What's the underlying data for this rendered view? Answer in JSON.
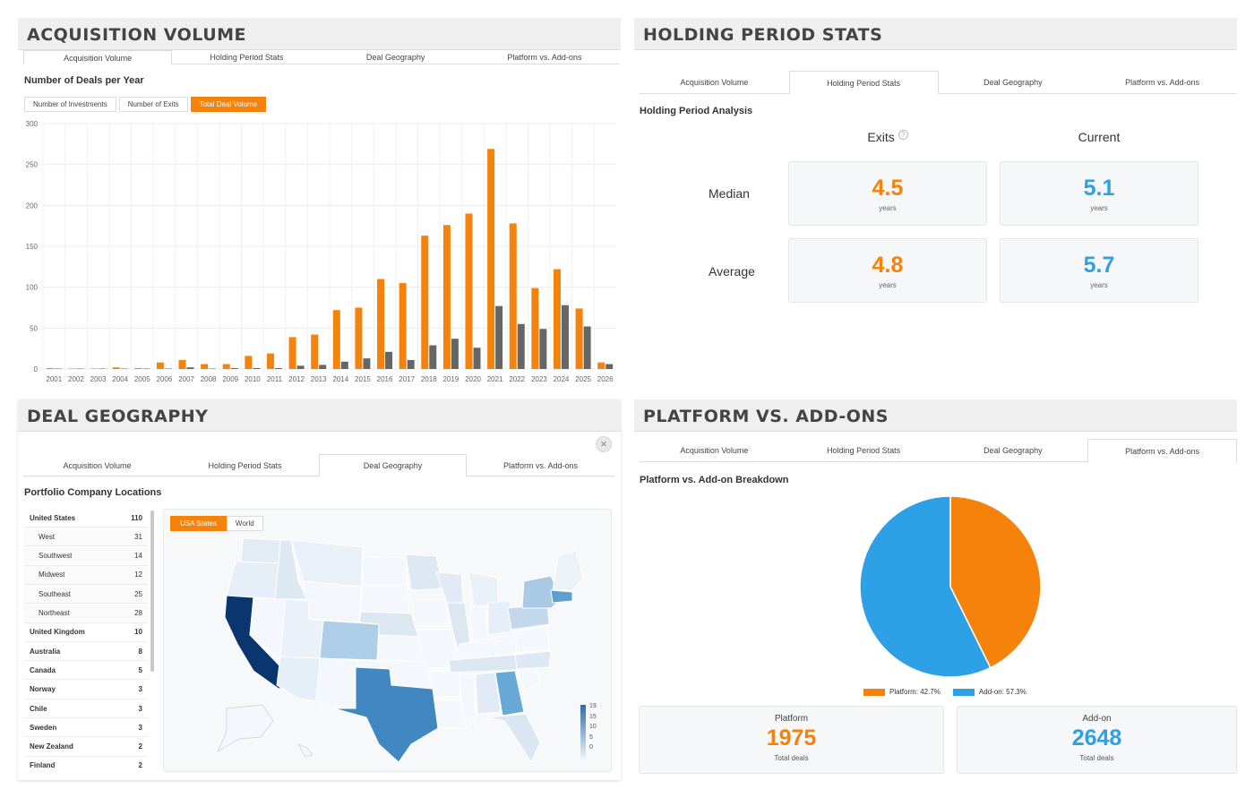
{
  "tabs": [
    "Acquisition Volume",
    "Holding Period Stats",
    "Deal Geography",
    "Platform vs. Add-ons"
  ],
  "panel1": {
    "title": "ACQUISITION VOLUME",
    "subtitle": "Number of Deals per Year",
    "buttons": [
      "Number of Investments",
      "Number of Exits",
      "Total Deal Volume"
    ],
    "active_button": 2
  },
  "chart_data": {
    "type": "bar",
    "categories": [
      "2001",
      "2002",
      "2003",
      "2004",
      "2005",
      "2006",
      "2007",
      "2008",
      "2009",
      "2010",
      "2011",
      "2012",
      "2013",
      "2014",
      "2015",
      "2016",
      "2017",
      "2018",
      "2019",
      "2020",
      "2021",
      "2022",
      "2023",
      "2024",
      "2025",
      "2026"
    ],
    "series": [
      {
        "color": "#f5820a",
        "values": [
          1,
          0,
          0,
          2,
          1,
          8,
          11,
          6,
          6,
          16,
          19,
          39,
          42,
          72,
          75,
          110,
          105,
          163,
          176,
          190,
          269,
          178,
          99,
          122,
          74,
          8
        ]
      },
      {
        "color": "#666666",
        "values": [
          0,
          0,
          0,
          0,
          0,
          0,
          2,
          0,
          1,
          1,
          1,
          4,
          5,
          9,
          13,
          21,
          11,
          29,
          37,
          26,
          77,
          55,
          49,
          78,
          52,
          6
        ]
      }
    ],
    "yticks": [
      0,
      50,
      100,
      150,
      200,
      250,
      300
    ],
    "ylim": [
      0,
      300
    ],
    "grid": true
  },
  "panel2": {
    "title": "HOLDING PERIOD STATS",
    "subtitle": "Holding Period Analysis",
    "col_exits": "Exits",
    "col_current": "Current",
    "row_median": "Median",
    "row_average": "Average",
    "median_exits": "4.5",
    "median_current": "5.1",
    "average_exits": "4.8",
    "average_current": "5.7",
    "unit": "years",
    "help_glyph": "?"
  },
  "panel3": {
    "title": "DEAL GEOGRAPHY",
    "subtitle": "Portfolio Company Locations",
    "close_glyph": "×",
    "map_buttons": [
      "USA States",
      "World"
    ],
    "countries": [
      {
        "name": "United States",
        "count": "110",
        "level": "top"
      },
      {
        "name": "West",
        "count": "31",
        "level": "sub"
      },
      {
        "name": "Southwest",
        "count": "14",
        "level": "sub"
      },
      {
        "name": "Midwest",
        "count": "12",
        "level": "sub"
      },
      {
        "name": "Southeast",
        "count": "25",
        "level": "sub"
      },
      {
        "name": "Northeast",
        "count": "28",
        "level": "sub"
      },
      {
        "name": "United Kingdom",
        "count": "10",
        "level": "top"
      },
      {
        "name": "Australia",
        "count": "8",
        "level": "top"
      },
      {
        "name": "Canada",
        "count": "5",
        "level": "top"
      },
      {
        "name": "Norway",
        "count": "3",
        "level": "top"
      },
      {
        "name": "Chile",
        "count": "3",
        "level": "top"
      },
      {
        "name": "Sweden",
        "count": "3",
        "level": "top"
      },
      {
        "name": "New Zealand",
        "count": "2",
        "level": "top"
      },
      {
        "name": "Finland",
        "count": "2",
        "level": "top"
      }
    ],
    "legend_ticks": [
      "19",
      "15",
      "10",
      "5",
      "0"
    ]
  },
  "panel4": {
    "title": "PLATFORM VS. ADD-ONS",
    "subtitle": "Platform vs. Add-on Breakdown",
    "platform_pct": 42.7,
    "legend_platform": "Platform: 42.7%",
    "legend_addon": "Add-on: 57.3%",
    "platform_label": "Platform",
    "platform_value": "1975",
    "addon_label": "Add-on",
    "addon_value": "2648",
    "total_label": "Total deals",
    "platform_color": "#f5820a",
    "addon_color": "#2da0e6"
  }
}
